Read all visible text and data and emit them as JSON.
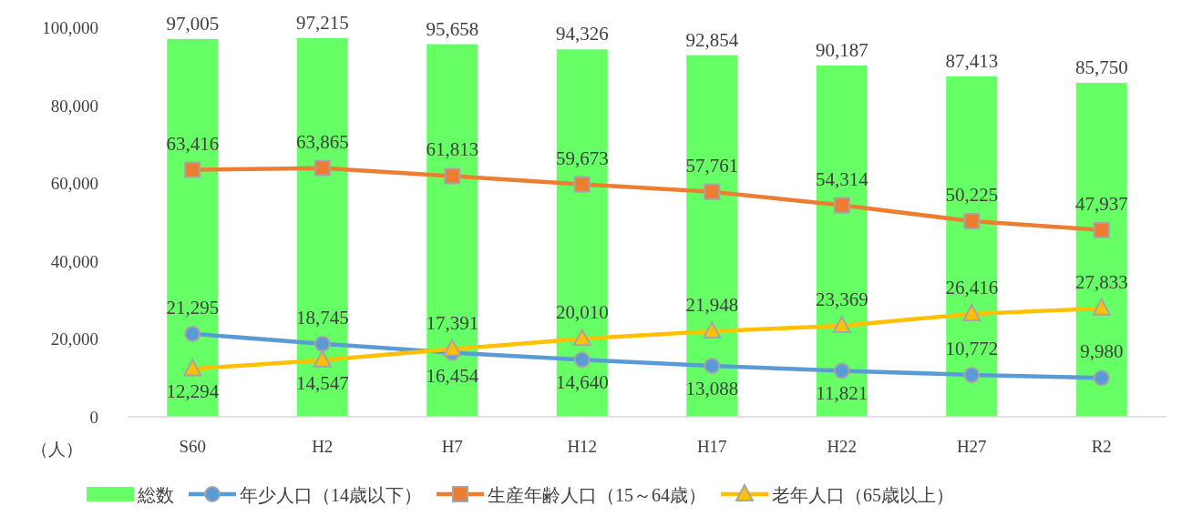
{
  "chart_data": {
    "type": "bar",
    "ylabel": "（人）",
    "categories": [
      "S60",
      "H2",
      "H7",
      "H12",
      "H17",
      "H22",
      "H27",
      "R2"
    ],
    "ylim": [
      0,
      100000
    ],
    "yticks": [
      0,
      {
        "value": 20000,
        "label": "20,000"
      },
      {
        "value": 40000,
        "label": "40,000"
      },
      {
        "value": 60000,
        "label": "60,000"
      },
      {
        "value": 80000,
        "label": "80,000"
      },
      {
        "value": 100000,
        "label": "100,000"
      }
    ],
    "legend": "bottom",
    "series": [
      {
        "name": "総数",
        "color": "#66ff66",
        "values": [
          97005,
          97215,
          95658,
          94326,
          92854,
          90187,
          87413,
          85750
        ],
        "value_labels": [
          "97,005",
          "97,215",
          "95,658",
          "94,326",
          "92,854",
          "90,187",
          "87,413",
          "85,750"
        ]
      },
      {
        "name": "年少人口（14歳以下）",
        "type": "line",
        "marker": "circle",
        "color": "#5b9bd5",
        "values": [
          21295,
          18745,
          16454,
          14640,
          13088,
          11821,
          10772,
          9980
        ],
        "value_labels": [
          "21,295",
          "18,745",
          "16,454",
          "14,640",
          "13,088",
          "11,821",
          "10,772",
          "9,980"
        ]
      },
      {
        "name": "生産年齢人口（15～64歳）",
        "type": "line",
        "marker": "square",
        "color": "#ed7d31",
        "values": [
          63416,
          63865,
          61813,
          59673,
          57761,
          54314,
          50225,
          47937
        ],
        "value_labels": [
          "63,416",
          "63,865",
          "61,813",
          "59,673",
          "57,761",
          "54,314",
          "50,225",
          "47,937"
        ]
      },
      {
        "name": "老年人口（65歳以上）",
        "type": "line",
        "marker": "triangle",
        "color": "#ffc000",
        "values": [
          12294,
          14547,
          17391,
          20010,
          21948,
          23369,
          26416,
          27833
        ],
        "value_labels": [
          "12,294",
          "14,547",
          "17,391",
          "20,010",
          "21,948",
          "23,369",
          "26,416",
          "27,833"
        ]
      }
    ]
  }
}
